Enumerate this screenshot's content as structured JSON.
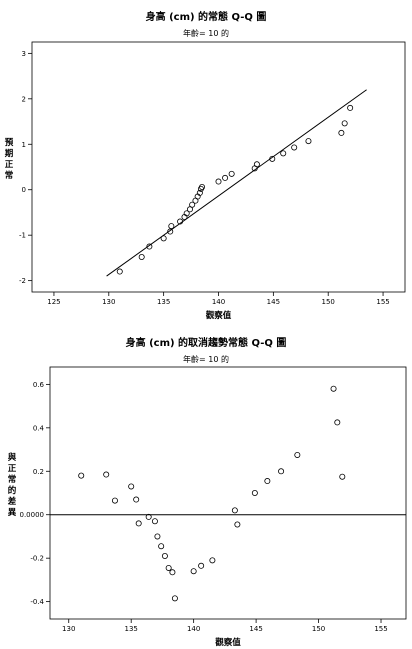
{
  "chart_data": [
    {
      "type": "scatter",
      "title": "身高 (cm) 的常態 Q-Q 圖",
      "subtitle": "年齡= 10 的",
      "xlabel": "觀察值",
      "ylabel": "預期正常",
      "xlim": [
        123,
        157
      ],
      "ylim": [
        -2.25,
        3.25
      ],
      "xticks": [
        "125",
        "130",
        "135",
        "140",
        "145",
        "150",
        "155"
      ],
      "yticks": [
        "-2",
        "-1",
        "0",
        "1",
        "2",
        "3"
      ],
      "reference_line": {
        "x": [
          129.8,
          153.5
        ],
        "y": [
          -1.9,
          2.2
        ]
      },
      "points": [
        [
          131,
          -1.8
        ],
        [
          133,
          -1.48
        ],
        [
          133.7,
          -1.25
        ],
        [
          135,
          -1.07
        ],
        [
          135.6,
          -0.92
        ],
        [
          135.7,
          -0.8
        ],
        [
          136.5,
          -0.7
        ],
        [
          136.9,
          -0.6
        ],
        [
          137.1,
          -0.52
        ],
        [
          137.4,
          -0.43
        ],
        [
          137.6,
          -0.33
        ],
        [
          137.9,
          -0.24
        ],
        [
          138.1,
          -0.15
        ],
        [
          138.3,
          -0.07
        ],
        [
          138.4,
          0.02
        ],
        [
          138.5,
          0.06
        ],
        [
          140,
          0.18
        ],
        [
          140.6,
          0.26
        ],
        [
          141.2,
          0.35
        ],
        [
          143.3,
          0.47
        ],
        [
          143.5,
          0.56
        ],
        [
          144.9,
          0.68
        ],
        [
          145.9,
          0.8
        ],
        [
          146.9,
          0.93
        ],
        [
          148.2,
          1.07
        ],
        [
          151.2,
          1.25
        ],
        [
          151.5,
          1.46
        ],
        [
          152,
          1.8
        ]
      ]
    },
    {
      "type": "scatter",
      "title": "身高 (cm) 的取消趨勢常態 Q-Q 圖",
      "subtitle": "年齡= 10 的",
      "xlabel": "觀察值",
      "ylabel": "與正常的差異",
      "xlim": [
        128.5,
        157
      ],
      "ylim": [
        -0.48,
        0.68
      ],
      "xticks": [
        "130",
        "135",
        "140",
        "145",
        "150",
        "155"
      ],
      "yticks": [
        "0.6",
        "0.4",
        "0.2",
        "0.0000",
        "-0.2",
        "-0.4"
      ],
      "reference_y": 0,
      "points": [
        [
          131,
          0.18
        ],
        [
          133,
          0.185
        ],
        [
          133.7,
          0.065
        ],
        [
          135,
          0.13
        ],
        [
          135.4,
          0.07
        ],
        [
          135.6,
          -0.04
        ],
        [
          136.4,
          -0.01
        ],
        [
          136.9,
          -0.03
        ],
        [
          137.1,
          -0.1
        ],
        [
          137.4,
          -0.145
        ],
        [
          137.7,
          -0.19
        ],
        [
          138,
          -0.245
        ],
        [
          138.3,
          -0.265
        ],
        [
          138.5,
          -0.385
        ],
        [
          140,
          -0.26
        ],
        [
          140.6,
          -0.235
        ],
        [
          141.5,
          -0.21
        ],
        [
          143.3,
          0.02
        ],
        [
          143.5,
          -0.045
        ],
        [
          144.9,
          0.1
        ],
        [
          145.9,
          0.155
        ],
        [
          147,
          0.2
        ],
        [
          148.3,
          0.275
        ],
        [
          151.2,
          0.58
        ],
        [
          151.5,
          0.425
        ],
        [
          151.9,
          0.175
        ]
      ]
    }
  ]
}
